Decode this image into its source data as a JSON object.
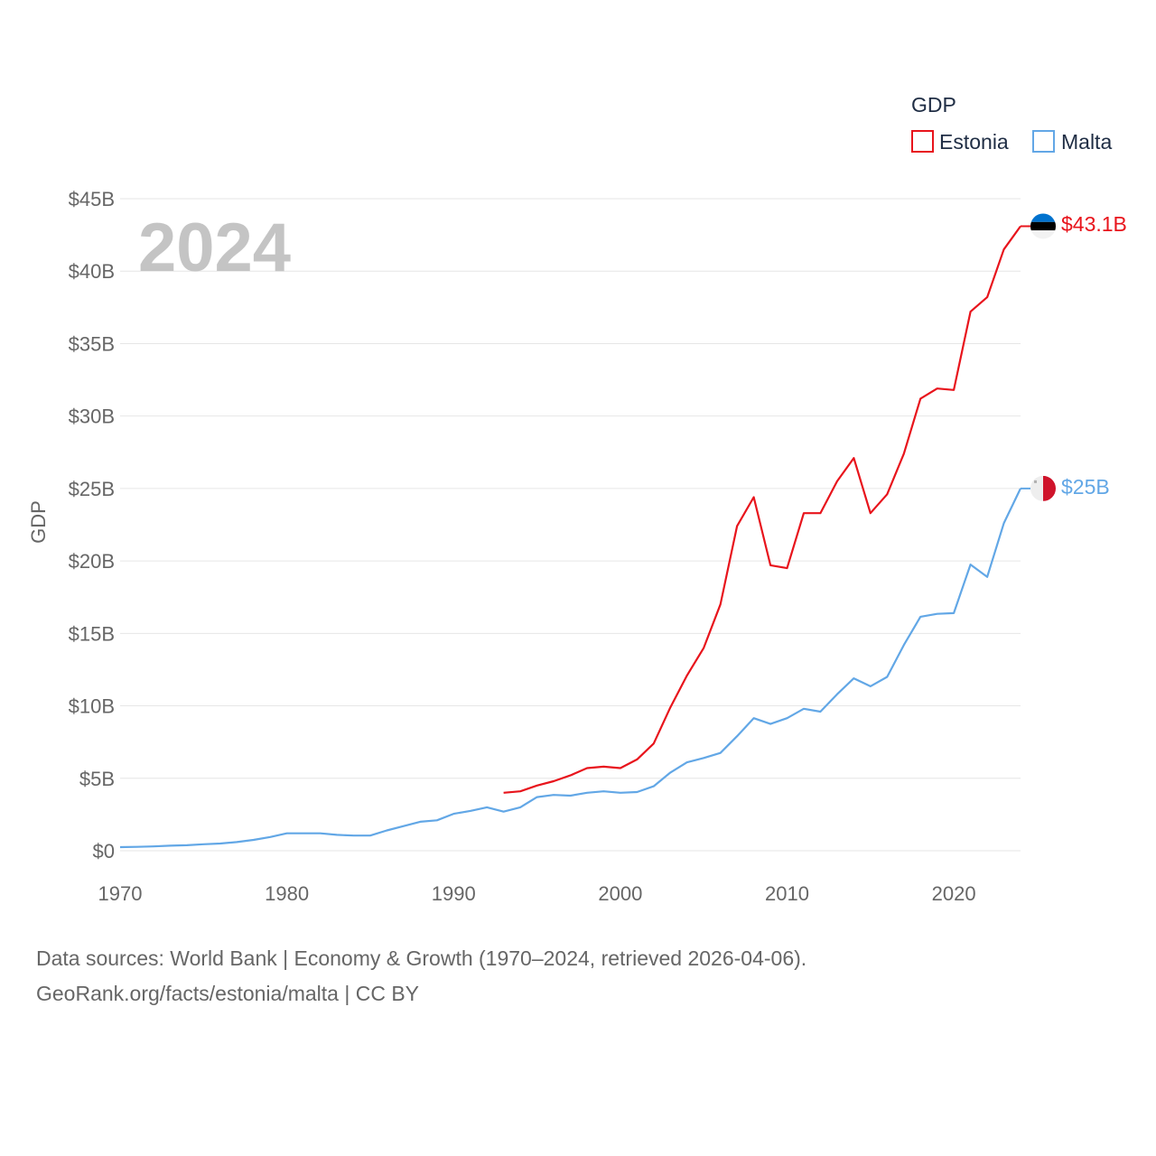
{
  "chart_data": {
    "type": "line",
    "current_year": "2024",
    "ylabel": "GDP",
    "xlim": [
      1970,
      2024
    ],
    "ylim": [
      0,
      45
    ],
    "x_ticks": [
      {
        "value": 1970,
        "label": "1970"
      },
      {
        "value": 1980,
        "label": "1980"
      },
      {
        "value": 1990,
        "label": "1990"
      },
      {
        "value": 2000,
        "label": "2000"
      },
      {
        "value": 2010,
        "label": "2010"
      },
      {
        "value": 2020,
        "label": "2020"
      }
    ],
    "y_ticks": [
      {
        "value": 0,
        "label": "$0"
      },
      {
        "value": 5,
        "label": "$5B"
      },
      {
        "value": 10,
        "label": "$10B"
      },
      {
        "value": 15,
        "label": "$15B"
      },
      {
        "value": 20,
        "label": "$20B"
      },
      {
        "value": 25,
        "label": "$25B"
      },
      {
        "value": 30,
        "label": "$30B"
      },
      {
        "value": 35,
        "label": "$35B"
      },
      {
        "value": 40,
        "label": "$40B"
      },
      {
        "value": 45,
        "label": "$45B"
      }
    ],
    "legend": {
      "title": "GDP",
      "position": "top-right"
    },
    "series": [
      {
        "name": "Estonia",
        "color": "#e8141c",
        "end_label": "$43.1B",
        "flag": "estonia-flag",
        "x": [
          1993,
          1994,
          1995,
          1996,
          1997,
          1998,
          1999,
          2000,
          2001,
          2002,
          2003,
          2004,
          2005,
          2006,
          2007,
          2008,
          2009,
          2010,
          2011,
          2012,
          2013,
          2014,
          2015,
          2016,
          2017,
          2018,
          2019,
          2020,
          2021,
          2022,
          2023,
          2024
        ],
        "values": [
          4.0,
          4.1,
          4.5,
          4.8,
          5.2,
          5.7,
          5.8,
          5.7,
          6.3,
          7.4,
          9.9,
          12.1,
          14.0,
          17.0,
          22.4,
          24.4,
          19.7,
          19.5,
          23.3,
          23.3,
          25.5,
          27.1,
          23.3,
          24.6,
          27.4,
          31.2,
          31.9,
          31.8,
          37.2,
          38.2,
          41.5,
          43.1
        ]
      },
      {
        "name": "Malta",
        "color": "#62a7e6",
        "end_label": "$25B",
        "flag": "malta-flag",
        "x": [
          1970,
          1971,
          1972,
          1973,
          1974,
          1975,
          1976,
          1977,
          1978,
          1979,
          1980,
          1981,
          1982,
          1983,
          1984,
          1985,
          1986,
          1987,
          1988,
          1989,
          1990,
          1991,
          1992,
          1993,
          1994,
          1995,
          1996,
          1997,
          1998,
          1999,
          2000,
          2001,
          2002,
          2003,
          2004,
          2005,
          2006,
          2007,
          2008,
          2009,
          2010,
          2011,
          2012,
          2013,
          2014,
          2015,
          2016,
          2017,
          2018,
          2019,
          2020,
          2021,
          2022,
          2023,
          2024
        ],
        "values": [
          0.25,
          0.27,
          0.3,
          0.35,
          0.38,
          0.45,
          0.5,
          0.6,
          0.75,
          0.95,
          1.2,
          1.2,
          1.2,
          1.1,
          1.05,
          1.05,
          1.4,
          1.7,
          2.0,
          2.1,
          2.55,
          2.75,
          3.0,
          2.7,
          3.0,
          3.7,
          3.85,
          3.8,
          4.0,
          4.1,
          4.0,
          4.05,
          4.45,
          5.4,
          6.1,
          6.4,
          6.75,
          7.9,
          9.15,
          8.75,
          9.15,
          9.8,
          9.6,
          10.8,
          11.9,
          11.35,
          12.0,
          14.2,
          16.15,
          16.35,
          16.4,
          19.75,
          18.9,
          22.6,
          25.0
        ]
      }
    ]
  },
  "footer": {
    "sources_line": "Data sources: World Bank | Economy & Growth (1970–2024, retrieved 2026-04-06).",
    "site_line": "GeoRank.org/facts/estonia/malta | CC BY"
  }
}
